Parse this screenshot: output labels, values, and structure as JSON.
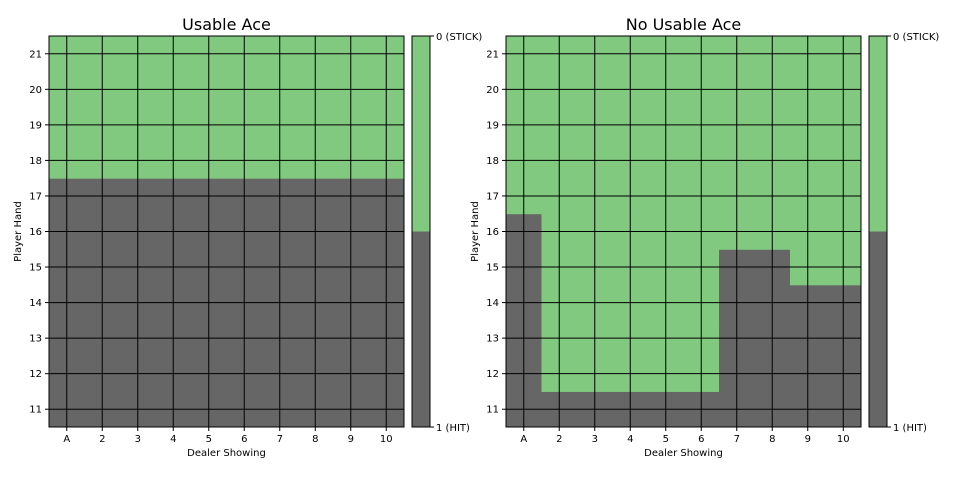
{
  "colors": {
    "stick": "#80c97f",
    "hit": "#666666",
    "grid": "#000000"
  },
  "chart_data": [
    {
      "type": "heatmap",
      "title": "Usable Ace",
      "xlabel": "Dealer Showing",
      "ylabel": "Player Hand",
      "x_categories": [
        "A",
        "2",
        "3",
        "4",
        "5",
        "6",
        "7",
        "8",
        "9",
        "10"
      ],
      "y_categories": [
        "11",
        "12",
        "13",
        "14",
        "15",
        "16",
        "17",
        "18",
        "19",
        "20",
        "21"
      ],
      "values_note": "1 = HIT, 0 = STICK; rows ordered by y_categories (11..21), columns by x_categories",
      "values": [
        [
          1,
          1,
          1,
          1,
          1,
          1,
          1,
          1,
          1,
          1
        ],
        [
          1,
          1,
          1,
          1,
          1,
          1,
          1,
          1,
          1,
          1
        ],
        [
          1,
          1,
          1,
          1,
          1,
          1,
          1,
          1,
          1,
          1
        ],
        [
          1,
          1,
          1,
          1,
          1,
          1,
          1,
          1,
          1,
          1
        ],
        [
          1,
          1,
          1,
          1,
          1,
          1,
          1,
          1,
          1,
          1
        ],
        [
          1,
          1,
          1,
          1,
          1,
          1,
          1,
          1,
          1,
          1
        ],
        [
          1,
          1,
          1,
          1,
          1,
          1,
          1,
          1,
          1,
          1
        ],
        [
          0,
          0,
          0,
          0,
          0,
          0,
          0,
          0,
          0,
          0
        ],
        [
          0,
          0,
          0,
          0,
          0,
          0,
          0,
          0,
          0,
          0
        ],
        [
          0,
          0,
          0,
          0,
          0,
          0,
          0,
          0,
          0,
          0
        ],
        [
          0,
          0,
          0,
          0,
          0,
          0,
          0,
          0,
          0,
          0
        ]
      ],
      "colorbar": {
        "top_label": "0 (STICK)",
        "bottom_label": "1 (HIT)"
      },
      "grid": true
    },
    {
      "type": "heatmap",
      "title": "No Usable Ace",
      "xlabel": "Dealer Showing",
      "ylabel": "Player Hand",
      "x_categories": [
        "A",
        "2",
        "3",
        "4",
        "5",
        "6",
        "7",
        "8",
        "9",
        "10"
      ],
      "y_categories": [
        "11",
        "12",
        "13",
        "14",
        "15",
        "16",
        "17",
        "18",
        "19",
        "20",
        "21"
      ],
      "values_note": "1 = HIT, 0 = STICK; rows ordered by y_categories (11..21), columns by x_categories",
      "values": [
        [
          1,
          1,
          1,
          1,
          1,
          1,
          1,
          1,
          1,
          1
        ],
        [
          1,
          0,
          0,
          0,
          0,
          0,
          1,
          1,
          1,
          1
        ],
        [
          1,
          0,
          0,
          0,
          0,
          0,
          1,
          1,
          1,
          1
        ],
        [
          1,
          0,
          0,
          0,
          0,
          0,
          1,
          1,
          1,
          1
        ],
        [
          1,
          0,
          0,
          0,
          0,
          0,
          1,
          1,
          0,
          0
        ],
        [
          1,
          0,
          0,
          0,
          0,
          0,
          0,
          0,
          0,
          0
        ],
        [
          0,
          0,
          0,
          0,
          0,
          0,
          0,
          0,
          0,
          0
        ],
        [
          0,
          0,
          0,
          0,
          0,
          0,
          0,
          0,
          0,
          0
        ],
        [
          0,
          0,
          0,
          0,
          0,
          0,
          0,
          0,
          0,
          0
        ],
        [
          0,
          0,
          0,
          0,
          0,
          0,
          0,
          0,
          0,
          0
        ],
        [
          0,
          0,
          0,
          0,
          0,
          0,
          0,
          0,
          0,
          0
        ]
      ],
      "colorbar": {
        "top_label": "0 (STICK)",
        "bottom_label": "1 (HIT)"
      },
      "grid": true
    }
  ]
}
